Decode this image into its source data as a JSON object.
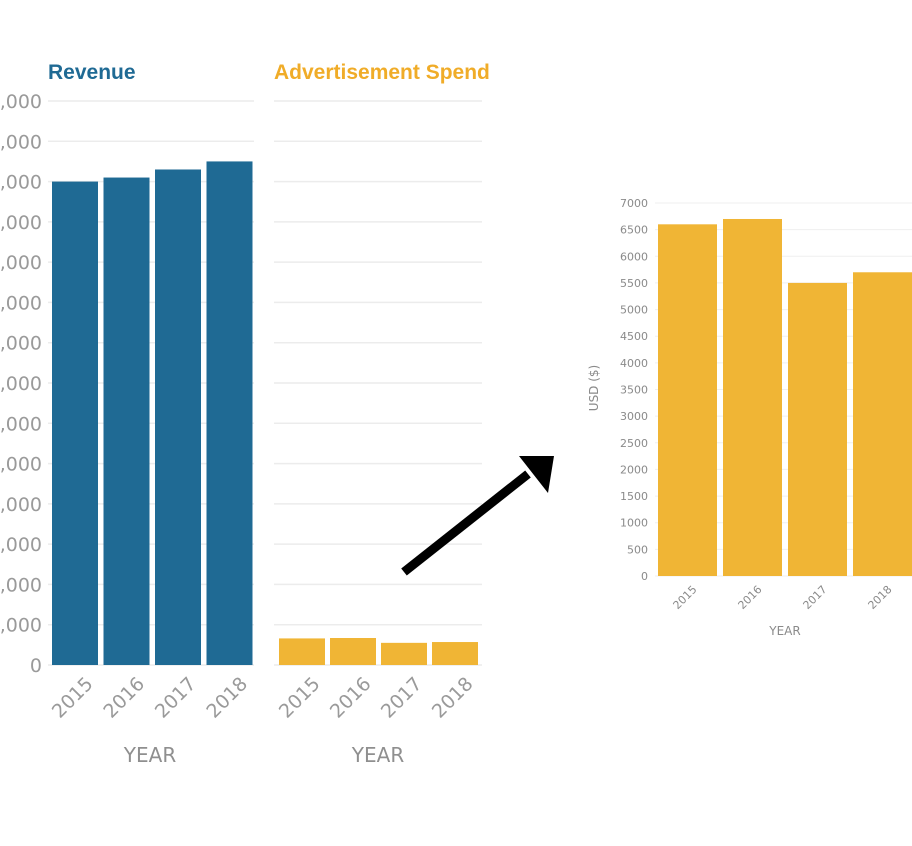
{
  "chart_data": [
    {
      "type": "bar",
      "title": "Revenue",
      "title_color": "#1f6a94",
      "bar_color": "#1f6a94",
      "categories": [
        "2015",
        "2016",
        "2017",
        "2018"
      ],
      "values": [
        120000,
        121000,
        123000,
        125000
      ],
      "ylim": [
        0,
        140000
      ],
      "ytick_labels": [
        ",000",
        ",000",
        ",000",
        ",000",
        ",000",
        ",000",
        ",000",
        ",000",
        ",000",
        ",000",
        ",000",
        ",000",
        ",000",
        ",000",
        "0"
      ],
      "xlabel": "YEAR",
      "ylabel": "",
      "grid": true
    },
    {
      "type": "bar",
      "title": "Advertisement Spend",
      "title_color": "#f0ac28",
      "bar_color": "#f0b535",
      "categories": [
        "2015",
        "2016",
        "2017",
        "2018"
      ],
      "values": [
        6600,
        6700,
        5500,
        5700
      ],
      "ylim": [
        0,
        140000
      ],
      "xlabel": "YEAR",
      "ylabel": "",
      "grid": true
    },
    {
      "type": "bar",
      "title": "",
      "bar_color": "#f0b535",
      "categories": [
        "2015",
        "2016",
        "2017",
        "2018"
      ],
      "values": [
        6600,
        6700,
        5500,
        5700
      ],
      "ylim": [
        0,
        7000
      ],
      "yticks": [
        "0",
        "500",
        "1000",
        "1500",
        "2000",
        "2500",
        "3000",
        "3500",
        "4000",
        "4500",
        "5000",
        "5500",
        "6000",
        "6500",
        "7000"
      ],
      "xlabel": "YEAR",
      "ylabel": "USD ($)",
      "grid": true
    }
  ],
  "annotation": {
    "type": "arrow",
    "color": "#000000"
  }
}
